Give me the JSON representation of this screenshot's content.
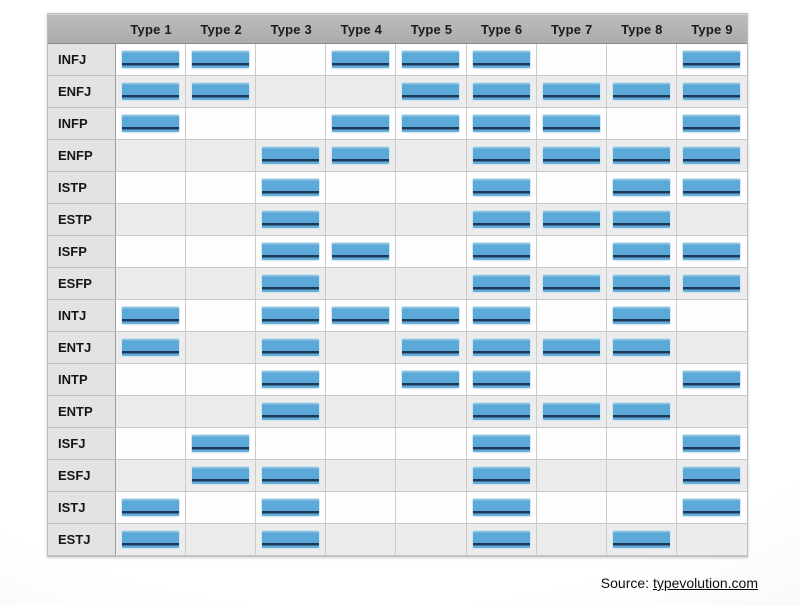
{
  "page": {
    "footer": {
      "prefix": "Source: ",
      "link": "typevolution.com"
    }
  },
  "colors": {
    "bar_fill": "#5ca8d8",
    "bar_underline": "#1b3a57",
    "header_bg": "#b4b4b4",
    "row_label_bg": "#e3e3e3",
    "row_bg": "#fefefe",
    "row_alt_bg": "#ececec",
    "grid_line": "#c9c9c9"
  },
  "chart_data": {
    "type": "heatmap",
    "title": "",
    "xlabel": "",
    "ylabel": "",
    "legend_position": "none",
    "grid": true,
    "value_encoding": "filled bar = association present (1), empty cell = absent (0)",
    "columns": [
      "Type 1",
      "Type 2",
      "Type 3",
      "Type 4",
      "Type 5",
      "Type 6",
      "Type 7",
      "Type 8",
      "Type 9"
    ],
    "rows": [
      {
        "label": "INFJ",
        "cells": [
          1,
          1,
          0,
          1,
          1,
          1,
          0,
          0,
          1
        ]
      },
      {
        "label": "ENFJ",
        "cells": [
          1,
          1,
          0,
          0,
          1,
          1,
          1,
          1,
          1
        ]
      },
      {
        "label": "INFP",
        "cells": [
          1,
          0,
          0,
          1,
          1,
          1,
          1,
          0,
          1
        ]
      },
      {
        "label": "ENFP",
        "cells": [
          0,
          0,
          1,
          1,
          0,
          1,
          1,
          1,
          1
        ]
      },
      {
        "label": "ISTP",
        "cells": [
          0,
          0,
          1,
          0,
          0,
          1,
          0,
          1,
          1
        ]
      },
      {
        "label": "ESTP",
        "cells": [
          0,
          0,
          1,
          0,
          0,
          1,
          1,
          1,
          0
        ]
      },
      {
        "label": "ISFP",
        "cells": [
          0,
          0,
          1,
          1,
          0,
          1,
          0,
          1,
          1
        ]
      },
      {
        "label": "ESFP",
        "cells": [
          0,
          0,
          1,
          0,
          0,
          1,
          1,
          1,
          1
        ]
      },
      {
        "label": "INTJ",
        "cells": [
          1,
          0,
          1,
          1,
          1,
          1,
          0,
          1,
          0
        ]
      },
      {
        "label": "ENTJ",
        "cells": [
          1,
          0,
          1,
          0,
          1,
          1,
          1,
          1,
          0
        ]
      },
      {
        "label": "INTP",
        "cells": [
          0,
          0,
          1,
          0,
          1,
          1,
          0,
          0,
          1
        ]
      },
      {
        "label": "ENTP",
        "cells": [
          0,
          0,
          1,
          0,
          0,
          1,
          1,
          1,
          0
        ]
      },
      {
        "label": "ISFJ",
        "cells": [
          0,
          1,
          0,
          0,
          0,
          1,
          0,
          0,
          1
        ]
      },
      {
        "label": "ESFJ",
        "cells": [
          0,
          1,
          1,
          0,
          0,
          1,
          0,
          0,
          1
        ]
      },
      {
        "label": "ISTJ",
        "cells": [
          1,
          0,
          1,
          0,
          0,
          1,
          0,
          0,
          1
        ]
      },
      {
        "label": "ESTJ",
        "cells": [
          1,
          0,
          1,
          0,
          0,
          1,
          0,
          1,
          0
        ]
      }
    ]
  }
}
